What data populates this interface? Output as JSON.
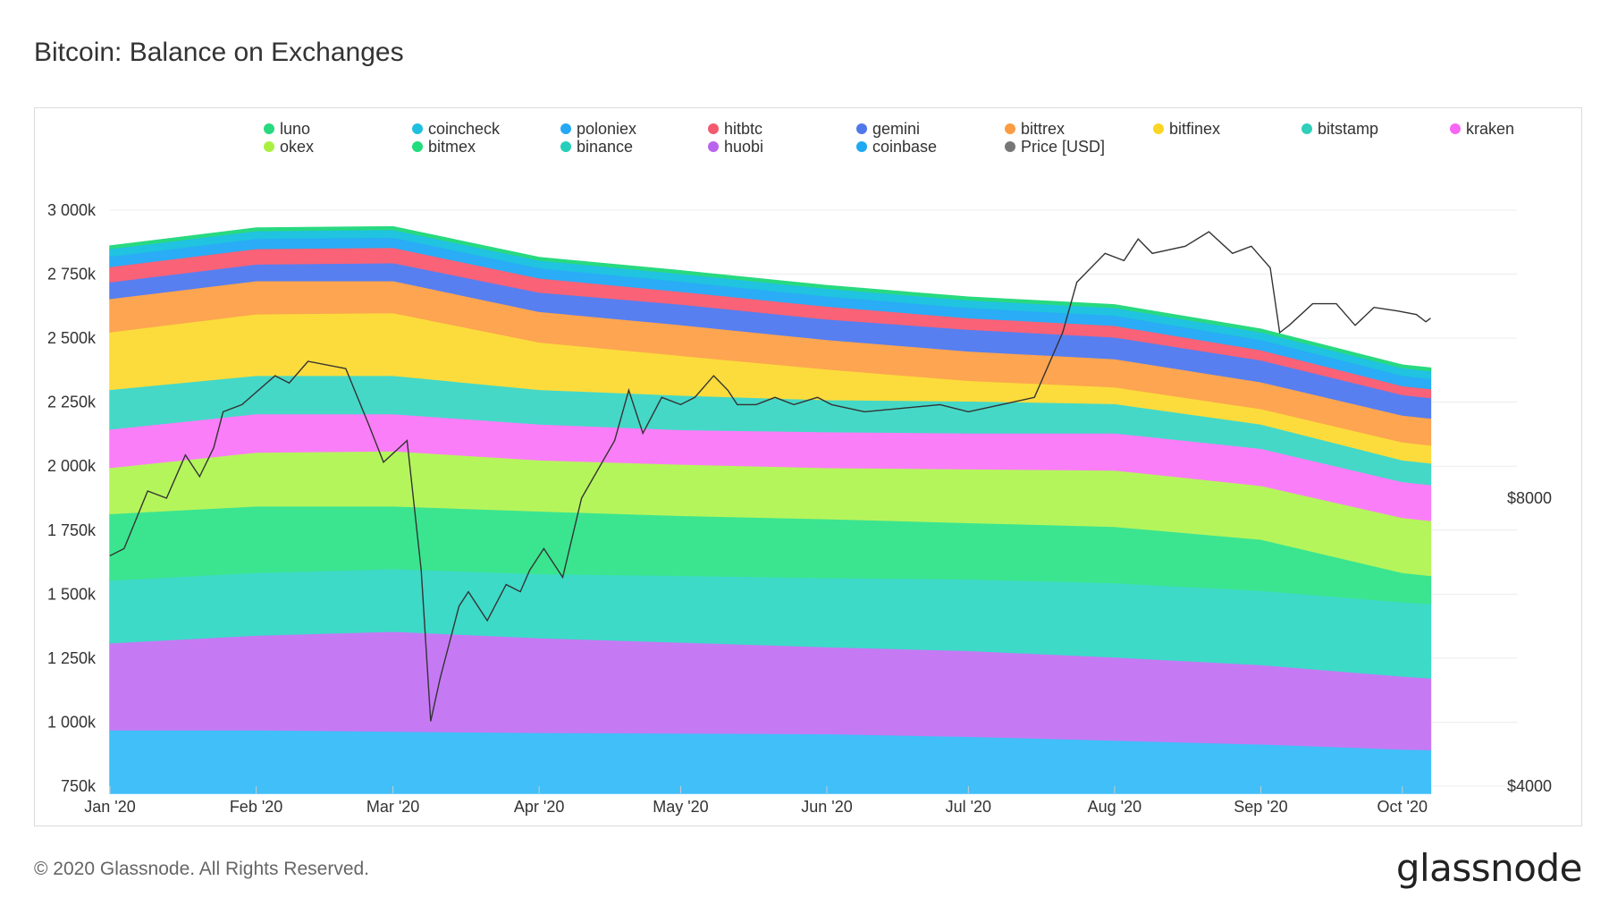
{
  "header": {
    "title": "Bitcoin: Balance on Exchanges"
  },
  "footer": {
    "copyright": "© 2020 Glassnode. All Rights Reserved.",
    "brand": "glassnode"
  },
  "chart_data": {
    "type": "area",
    "stacked": true,
    "watermark": "glassnode",
    "x_tick_labels": [
      "Jan '20",
      "Feb '20",
      "Mar '20",
      "Apr '20",
      "May '20",
      "Jun '20",
      "Jul '20",
      "Aug '20",
      "Sep '20",
      "Oct '20"
    ],
    "y_tick_labels": [
      "750k",
      "1 000k",
      "1 250k",
      "1 500k",
      "1 750k",
      "2 000k",
      "2 250k",
      "2 500k",
      "2 750k",
      "3 000k"
    ],
    "y_tick_values": [
      750000,
      1000000,
      1250000,
      1500000,
      1750000,
      2000000,
      2250000,
      2500000,
      2750000,
      3000000
    ],
    "ylim": [
      750000,
      3000000
    ],
    "y2_tick_labels": [
      "$4000",
      "$8000"
    ],
    "y2_tick_values": [
      4000,
      8000
    ],
    "y2lim": [
      4000,
      12000
    ],
    "legend": {
      "position": "top"
    },
    "x_days": [
      0,
      31,
      60,
      91,
      121,
      152,
      182,
      213,
      244,
      274,
      280
    ],
    "series": [
      {
        "name": "coinbase",
        "color": "#40bff8",
        "values": [
          970000,
          970000,
          965000,
          960000,
          958000,
          955000,
          945000,
          930000,
          915000,
          895000,
          893000
        ]
      },
      {
        "name": "huobi",
        "color": "#c57af4",
        "values": [
          340000,
          370000,
          390000,
          370000,
          355000,
          340000,
          335000,
          325000,
          310000,
          285000,
          280000
        ]
      },
      {
        "name": "binance",
        "color": "#3ddac8",
        "values": [
          245000,
          245000,
          245000,
          250000,
          260000,
          270000,
          280000,
          290000,
          290000,
          290000,
          290000
        ]
      },
      {
        "name": "bitmex",
        "color": "#3be58f",
        "values": [
          260000,
          260000,
          245000,
          245000,
          235000,
          230000,
          220000,
          220000,
          200000,
          115000,
          110000
        ]
      },
      {
        "name": "okex",
        "color": "#b5f55c",
        "values": [
          180000,
          210000,
          215000,
          200000,
          200000,
          200000,
          210000,
          220000,
          210000,
          215000,
          215000
        ]
      },
      {
        "name": "kraken",
        "color": "#fa7ef8",
        "values": [
          150000,
          150000,
          145000,
          140000,
          135000,
          140000,
          140000,
          145000,
          145000,
          140000,
          140000
        ]
      },
      {
        "name": "bitstamp",
        "color": "#45d8c7",
        "values": [
          155000,
          150000,
          150000,
          135000,
          135000,
          125000,
          125000,
          115000,
          95000,
          85000,
          85000
        ]
      },
      {
        "name": "bitfinex",
        "color": "#fcdc3c",
        "values": [
          225000,
          240000,
          245000,
          185000,
          155000,
          120000,
          80000,
          65000,
          60000,
          70000,
          70000
        ]
      },
      {
        "name": "bittrex",
        "color": "#fda550",
        "values": [
          130000,
          130000,
          125000,
          120000,
          120000,
          115000,
          115000,
          110000,
          105000,
          105000,
          105000
        ]
      },
      {
        "name": "gemini",
        "color": "#577ff0",
        "values": [
          65000,
          65000,
          70000,
          75000,
          80000,
          80000,
          85000,
          85000,
          85000,
          80000,
          80000
        ]
      },
      {
        "name": "hitbtc",
        "color": "#f96277",
        "values": [
          60000,
          60000,
          60000,
          55000,
          50000,
          50000,
          45000,
          45000,
          40000,
          35000,
          35000
        ]
      },
      {
        "name": "poloniex",
        "color": "#2aacf6",
        "values": [
          40000,
          40000,
          40000,
          40000,
          40000,
          40000,
          40000,
          40000,
          40000,
          40000,
          40000
        ]
      },
      {
        "name": "coincheck",
        "color": "#20c3e0",
        "values": [
          30000,
          30000,
          30000,
          30000,
          30000,
          30000,
          30000,
          30000,
          30000,
          30000,
          30000
        ]
      },
      {
        "name": "luno",
        "color": "#28d980",
        "values": [
          10000,
          10000,
          10000,
          10000,
          10000,
          10000,
          10000,
          10000,
          10000,
          10000,
          10000
        ]
      }
    ],
    "legend_entries": [
      {
        "name": "luno",
        "color": "#27d97f"
      },
      {
        "name": "coincheck",
        "color": "#1fbfe0"
      },
      {
        "name": "poloniex",
        "color": "#25a8f5"
      },
      {
        "name": "hitbtc",
        "color": "#f45a6e"
      },
      {
        "name": "gemini",
        "color": "#4f78ea"
      },
      {
        "name": "bittrex",
        "color": "#fb9c43"
      },
      {
        "name": "bitfinex",
        "color": "#fbd523"
      },
      {
        "name": "bitstamp",
        "color": "#2fcfb9"
      },
      {
        "name": "kraken",
        "color": "#f766f4"
      },
      {
        "name": "okex",
        "color": "#aaf040"
      },
      {
        "name": "bitmex",
        "color": "#20dd7e"
      },
      {
        "name": "binance",
        "color": "#25cfbb"
      },
      {
        "name": "huobi",
        "color": "#b964ef"
      },
      {
        "name": "coinbase",
        "color": "#1ea9f2"
      },
      {
        "name": "Price [USD]",
        "color": "#777777"
      }
    ],
    "price_series": {
      "name": "Price [USD]",
      "color": "#333333",
      "x_days": [
        0,
        3,
        8,
        12,
        16,
        19,
        22,
        24,
        28,
        35,
        38,
        42,
        50,
        55,
        58,
        63,
        66,
        68,
        70,
        74,
        76,
        80,
        84,
        87,
        89,
        92,
        96,
        100,
        107,
        110,
        113,
        117,
        121,
        124,
        128,
        131,
        133,
        137,
        141,
        145,
        150,
        153,
        160,
        168,
        176,
        182,
        189,
        196,
        202,
        205,
        211,
        215,
        218,
        221,
        228,
        233,
        238,
        242,
        246,
        248,
        250,
        255,
        260,
        264,
        268,
        273,
        277,
        279,
        280
      ],
      "values": [
        7200,
        7300,
        8100,
        8000,
        8600,
        8300,
        8700,
        9200,
        9300,
        9700,
        9600,
        9900,
        9800,
        9000,
        8500,
        8800,
        7000,
        4900,
        5500,
        6500,
        6700,
        6300,
        6800,
        6700,
        7000,
        7300,
        6900,
        8000,
        8800,
        9500,
        8900,
        9400,
        9300,
        9400,
        9700,
        9500,
        9300,
        9300,
        9400,
        9300,
        9400,
        9300,
        9200,
        9250,
        9300,
        9200,
        9300,
        9400,
        10300,
        11000,
        11400,
        11300,
        11600,
        11400,
        11500,
        11700,
        11400,
        11500,
        11200,
        10300,
        10400,
        10700,
        10700,
        10400,
        10650,
        10600,
        10550,
        10450,
        10500
      ]
    }
  }
}
